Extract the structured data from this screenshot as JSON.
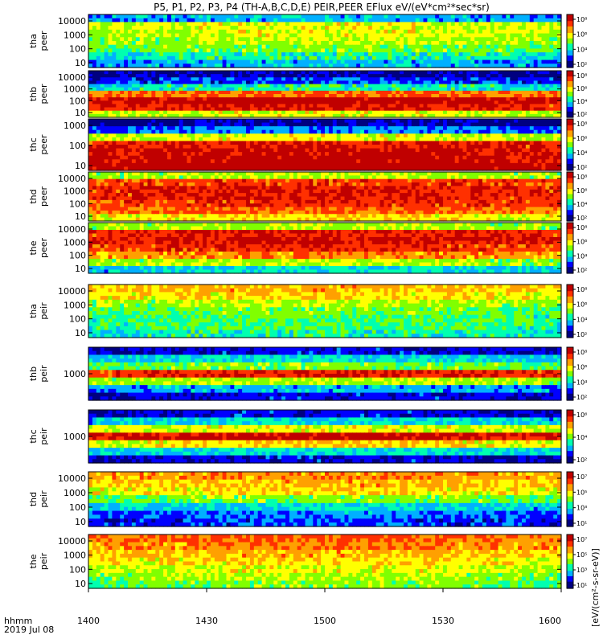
{
  "chart_data": {
    "type": "heatmap",
    "title": "P5, P1, P2, P3, P4 (TH-A,B,C,D,E) PEIR,PEER EFlux eV/(eV*cm²*sec*sr)",
    "x_axis": {
      "ticks": [
        "1400",
        "1430",
        "1500",
        "1530",
        "1600"
      ],
      "label_line1": "hhmm",
      "label_line2": "2019 Jul 08",
      "range": [
        "14:00",
        "16:00"
      ]
    },
    "colorbar_unit_label": "[eV/(cm²-s-sr-eV)]",
    "panels": [
      {
        "id": "tha-peer",
        "label1": "tha",
        "label2": "peer",
        "yticks": [
          "10000",
          "1000",
          "100",
          "10"
        ],
        "cbar_ticks": [
          "10⁸",
          "10⁶",
          "10⁴",
          "10²"
        ],
        "profile": [
          0.25,
          0.55,
          0.55,
          0.5,
          0.45,
          0.35,
          0.25
        ]
      },
      {
        "id": "thb-peer",
        "label1": "thb",
        "label2": "peer",
        "yticks": [
          "10000",
          "1000",
          "100",
          "10"
        ],
        "cbar_ticks": [
          "10⁸",
          "10⁶",
          "10⁴",
          "10²"
        ],
        "profile": [
          0.05,
          0.15,
          0.35,
          0.75,
          0.92,
          0.85,
          0.55
        ]
      },
      {
        "id": "thc-peer",
        "label1": "thc",
        "label2": "peer",
        "yticks": [
          "1000",
          "100",
          "10"
        ],
        "cbar_ticks": [
          "10⁸",
          "10⁶",
          "10⁴",
          "10²"
        ],
        "profile": [
          0.05,
          0.2,
          0.55,
          0.85,
          0.9,
          0.92,
          0.95
        ]
      },
      {
        "id": "thd-peer",
        "label1": "thd",
        "label2": "peer",
        "yticks": [
          "10000",
          "1000",
          "100",
          "10"
        ],
        "cbar_ticks": [
          "10⁸",
          "10⁶",
          "10⁴",
          "10²"
        ],
        "profile": [
          0.5,
          0.8,
          0.85,
          0.85,
          0.82,
          0.75,
          0.6
        ]
      },
      {
        "id": "the-peer",
        "label1": "the",
        "label2": "peer",
        "yticks": [
          "10000",
          "1000",
          "100",
          "10"
        ],
        "cbar_ticks": [
          "10⁸",
          "10⁶",
          "10⁴",
          "10²"
        ],
        "profile": [
          0.5,
          0.85,
          0.88,
          0.82,
          0.7,
          0.5,
          0.3
        ]
      },
      {
        "id": "tha-peir",
        "label1": "tha",
        "label2": "peir",
        "yticks": [
          "10000",
          "1000",
          "100",
          "10"
        ],
        "cbar_ticks": [
          "10⁸",
          "10⁶",
          "10⁴",
          "10²"
        ],
        "profile": [
          0.65,
          0.6,
          0.5,
          0.45,
          0.4,
          0.4,
          0.35
        ]
      },
      {
        "id": "thb-peir",
        "label1": "thb",
        "label2": "peir",
        "yticks": [
          "1000"
        ],
        "cbar_ticks": [
          "10⁸",
          "10⁶",
          "10⁴",
          "10²"
        ],
        "profile": [
          0.1,
          0.3,
          0.45,
          0.85,
          0.5,
          0.25,
          0.1
        ]
      },
      {
        "id": "thc-peir",
        "label1": "thc",
        "label2": "peir",
        "yticks": [
          "1000"
        ],
        "cbar_ticks": [
          "10⁶",
          "10⁴",
          "10²"
        ],
        "profile": [
          0.1,
          0.3,
          0.55,
          0.9,
          0.6,
          0.3,
          0.1
        ]
      },
      {
        "id": "thd-peir",
        "label1": "thd",
        "label2": "peir",
        "yticks": [
          "10000",
          "1000",
          "100",
          "10"
        ],
        "cbar_ticks": [
          "10⁷",
          "10⁵",
          "10³",
          "10¹"
        ],
        "profile": [
          0.7,
          0.65,
          0.6,
          0.45,
          0.3,
          0.2,
          0.15
        ]
      },
      {
        "id": "the-peir",
        "label1": "the",
        "label2": "peir",
        "yticks": [
          "10000",
          "1000",
          "100",
          "10"
        ],
        "cbar_ticks": [
          "10⁷",
          "10⁵",
          "10³",
          "10¹"
        ],
        "profile": [
          0.75,
          0.72,
          0.65,
          0.6,
          0.55,
          0.5,
          0.45
        ]
      }
    ]
  },
  "colors": {
    "colormap": [
      "#ffffff",
      "#000080",
      "#0000ff",
      "#00b0ff",
      "#00ffb0",
      "#80ff00",
      "#ffff00",
      "#ffa000",
      "#ff3000",
      "#c00000"
    ],
    "frame": "#000000",
    "background": "#ffffff"
  }
}
